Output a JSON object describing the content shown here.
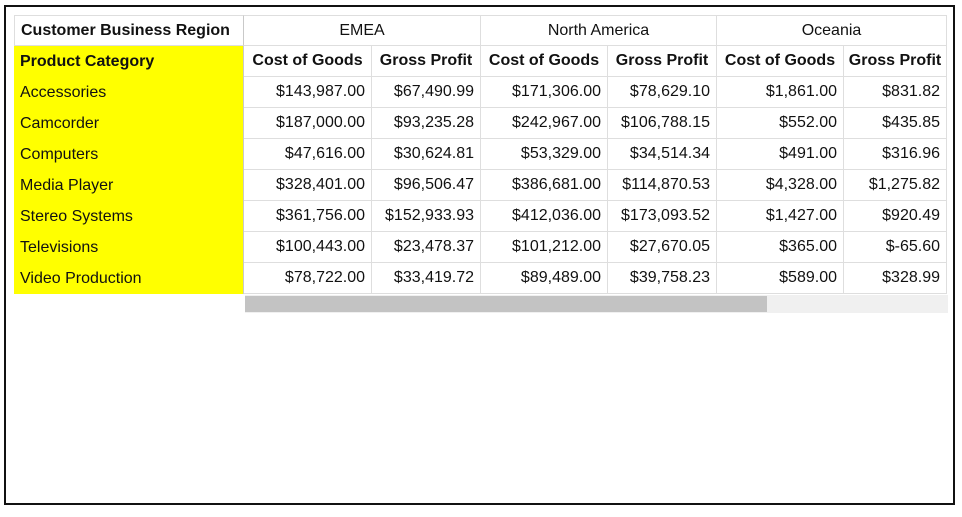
{
  "header": {
    "corner_label": "Customer Business Region",
    "row_header_label": "Product Category",
    "regions": [
      "EMEA",
      "North America",
      "Oceania"
    ],
    "measures": [
      "Cost of Goods",
      "Gross Profit",
      "Cost of Goods",
      "Gross Profit",
      "Cost of Goods",
      "Gross Profit"
    ]
  },
  "rows": [
    {
      "category": "Accessories",
      "values": [
        "$143,987.00",
        "$67,490.99",
        "$171,306.00",
        "$78,629.10",
        "$1,861.00",
        "$831.82"
      ]
    },
    {
      "category": "Camcorder",
      "values": [
        "$187,000.00",
        "$93,235.28",
        "$242,967.00",
        "$106,788.15",
        "$552.00",
        "$435.85"
      ]
    },
    {
      "category": "Computers",
      "values": [
        "$47,616.00",
        "$30,624.81",
        "$53,329.00",
        "$34,514.34",
        "$491.00",
        "$316.96"
      ]
    },
    {
      "category": "Media Player",
      "values": [
        "$328,401.00",
        "$96,506.47",
        "$386,681.00",
        "$114,870.53",
        "$4,328.00",
        "$1,275.82"
      ]
    },
    {
      "category": "Stereo Systems",
      "values": [
        "$361,756.00",
        "$152,933.93",
        "$412,036.00",
        "$173,093.52",
        "$1,427.00",
        "$920.49"
      ]
    },
    {
      "category": "Televisions",
      "values": [
        "$100,443.00",
        "$23,478.37",
        "$101,212.00",
        "$27,670.05",
        "$365.00",
        "$-65.60"
      ]
    },
    {
      "category": "Video Production",
      "values": [
        "$78,722.00",
        "$33,419.72",
        "$89,489.00",
        "$39,758.23",
        "$589.00",
        "$328.99"
      ]
    }
  ],
  "colors": {
    "row_header_bg": "#ffff00",
    "scroll_thumb": "#c3c3c3",
    "scroll_track": "#f0f0f0"
  }
}
